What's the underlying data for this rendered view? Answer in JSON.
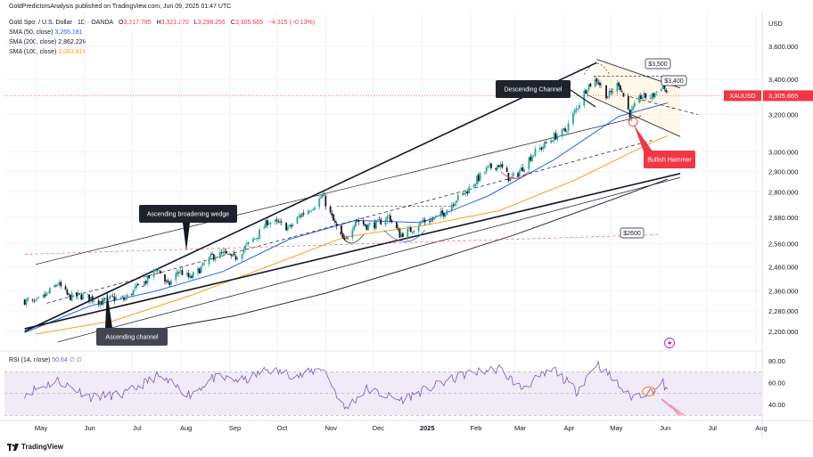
{
  "publisher_line": "GoldPredictorsAnalysis published on TradingView.com, Jun 09, 2025 01:47 UTC",
  "instrument": {
    "name": "Gold Spot / U.S. Dollar · 1D · OANDA",
    "open_label": "O",
    "open": "3,317.785",
    "high_label": "H",
    "high": "3,321.270",
    "low_label": "L",
    "low": "3,298.255",
    "close_label": "C",
    "close": "3,305.665",
    "change": "−4.315 (−0.13%)"
  },
  "indicators": [
    {
      "label": "SMA (50, close)",
      "value": "3,265.181",
      "color": "#2962ff"
    },
    {
      "label": "SMA (200, close)",
      "value": "2,862.226",
      "color": "#131722"
    },
    {
      "label": "SMA (100, close)",
      "value": "3,083.816",
      "color": "#f7a21b"
    }
  ],
  "rsi_header": {
    "label": "RSI (14, close)",
    "value": "50.64",
    "extra": "∅  ∅",
    "color": "#7e57c2"
  },
  "currency_label": "USD",
  "symbol_tag": {
    "name": "XAUUSD",
    "price": "3,305.665",
    "color": "#f23645"
  },
  "annotations": {
    "descending_channel": "Descending Channel",
    "ascending_broadening_wedge": "Ascending broadening wedge",
    "ascending_channel": "Ascending channel",
    "bullish_hammer": "Bullish Hammer",
    "level_3500": "$3,500",
    "level_3400": "$3,400",
    "level_2600": "$2600"
  },
  "branding": "TradingView",
  "chart_data": {
    "type": "candlestick",
    "y_scale": "log",
    "price_ticks": [
      3600,
      3400,
      3200,
      3000,
      2900,
      2800,
      2680,
      2560,
      2460,
      2360,
      2280,
      2200
    ],
    "price_tick_labels": [
      "3,600.000",
      "3,400.000",
      "3,200.000",
      "3,000.000",
      "2,900.000",
      "2,800.000",
      "2,680.000",
      "2,560.000",
      "2,460.000",
      "2,360.000",
      "2,280.000",
      "2,200.000"
    ],
    "rsi_ticks": [
      80,
      60,
      40
    ],
    "rsi_tick_labels": [
      "80.00",
      "60.00",
      "40.00"
    ],
    "rsi_band": [
      30,
      70
    ],
    "x_months": [
      "May",
      "Jun",
      "Jul",
      "Aug",
      "Sep",
      "Oct",
      "Nov",
      "Dec",
      "2025",
      "Feb",
      "Mar",
      "Apr",
      "May",
      "Jun",
      "Jul",
      "Aug"
    ],
    "price_path_weekly": [
      {
        "date": "2024-04-24",
        "close": 2320
      },
      {
        "date": "2024-05-01",
        "close": 2310
      },
      {
        "date": "2024-05-08",
        "close": 2345
      },
      {
        "date": "2024-05-15",
        "close": 2390
      },
      {
        "date": "2024-05-22",
        "close": 2335
      },
      {
        "date": "2024-05-29",
        "close": 2340
      },
      {
        "date": "2024-06-05",
        "close": 2330
      },
      {
        "date": "2024-06-12",
        "close": 2315
      },
      {
        "date": "2024-06-19",
        "close": 2330
      },
      {
        "date": "2024-06-26",
        "close": 2325
      },
      {
        "date": "2024-07-03",
        "close": 2365
      },
      {
        "date": "2024-07-10",
        "close": 2400
      },
      {
        "date": "2024-07-17",
        "close": 2455
      },
      {
        "date": "2024-07-24",
        "close": 2380
      },
      {
        "date": "2024-07-31",
        "close": 2445
      },
      {
        "date": "2024-08-07",
        "close": 2410
      },
      {
        "date": "2024-08-14",
        "close": 2455
      },
      {
        "date": "2024-08-21",
        "close": 2505
      },
      {
        "date": "2024-08-28",
        "close": 2515
      },
      {
        "date": "2024-09-04",
        "close": 2495
      },
      {
        "date": "2024-09-11",
        "close": 2545
      },
      {
        "date": "2024-09-18",
        "close": 2590
      },
      {
        "date": "2024-09-25",
        "close": 2660
      },
      {
        "date": "2024-10-02",
        "close": 2650
      },
      {
        "date": "2024-10-09",
        "close": 2630
      },
      {
        "date": "2024-10-16",
        "close": 2690
      },
      {
        "date": "2024-10-23",
        "close": 2725
      },
      {
        "date": "2024-10-30",
        "close": 2780
      },
      {
        "date": "2024-11-06",
        "close": 2660
      },
      {
        "date": "2024-11-13",
        "close": 2565
      },
      {
        "date": "2024-11-20",
        "close": 2670
      },
      {
        "date": "2024-11-27",
        "close": 2640
      },
      {
        "date": "2024-12-04",
        "close": 2650
      },
      {
        "date": "2024-12-11",
        "close": 2685
      },
      {
        "date": "2024-12-18",
        "close": 2600
      },
      {
        "date": "2024-12-25",
        "close": 2620
      },
      {
        "date": "2025-01-01",
        "close": 2660
      },
      {
        "date": "2025-01-08",
        "close": 2670
      },
      {
        "date": "2025-01-15",
        "close": 2700
      },
      {
        "date": "2025-01-22",
        "close": 2760
      },
      {
        "date": "2025-01-29",
        "close": 2800
      },
      {
        "date": "2025-02-05",
        "close": 2860
      },
      {
        "date": "2025-02-12",
        "close": 2915
      },
      {
        "date": "2025-02-19",
        "close": 2935
      },
      {
        "date": "2025-02-26",
        "close": 2860
      },
      {
        "date": "2025-03-05",
        "close": 2910
      },
      {
        "date": "2025-03-12",
        "close": 2985
      },
      {
        "date": "2025-03-19",
        "close": 3030
      },
      {
        "date": "2025-03-26",
        "close": 3080
      },
      {
        "date": "2025-04-02",
        "close": 3110
      },
      {
        "date": "2025-04-09",
        "close": 3230
      },
      {
        "date": "2025-04-16",
        "close": 3360
      },
      {
        "date": "2025-04-22",
        "close": 3400
      },
      {
        "date": "2025-04-29",
        "close": 3300
      },
      {
        "date": "2025-05-06",
        "close": 3380
      },
      {
        "date": "2025-05-13",
        "close": 3200
      },
      {
        "date": "2025-05-20",
        "close": 3300
      },
      {
        "date": "2025-05-27",
        "close": 3300
      },
      {
        "date": "2025-06-03",
        "close": 3370
      },
      {
        "date": "2025-06-06",
        "close": 3305
      }
    ],
    "sma50_path": [
      {
        "date": "2024-04-24",
        "value": 2195
      },
      {
        "date": "2024-06-05",
        "value": 2300
      },
      {
        "date": "2024-07-17",
        "value": 2360
      },
      {
        "date": "2024-08-28",
        "value": 2440
      },
      {
        "date": "2024-10-09",
        "value": 2580
      },
      {
        "date": "2024-11-20",
        "value": 2665
      },
      {
        "date": "2025-01-01",
        "value": 2655
      },
      {
        "date": "2025-02-12",
        "value": 2780
      },
      {
        "date": "2025-03-26",
        "value": 2960
      },
      {
        "date": "2025-05-06",
        "value": 3190
      },
      {
        "date": "2025-06-06",
        "value": 3265
      }
    ],
    "sma100_path": [
      {
        "date": "2024-05-01",
        "value": 2190
      },
      {
        "date": "2024-06-19",
        "value": 2240
      },
      {
        "date": "2024-08-07",
        "value": 2340
      },
      {
        "date": "2024-09-25",
        "value": 2460
      },
      {
        "date": "2024-11-13",
        "value": 2590
      },
      {
        "date": "2025-01-01",
        "value": 2640
      },
      {
        "date": "2025-02-19",
        "value": 2710
      },
      {
        "date": "2025-04-09",
        "value": 2860
      },
      {
        "date": "2025-05-27",
        "value": 3050
      },
      {
        "date": "2025-06-06",
        "value": 3084
      }
    ],
    "sma200_path": [
      {
        "date": "2024-07-10",
        "value": 2200
      },
      {
        "date": "2024-09-04",
        "value": 2260
      },
      {
        "date": "2024-11-01",
        "value": 2350
      },
      {
        "date": "2025-01-01",
        "value": 2470
      },
      {
        "date": "2025-03-01",
        "value": 2600
      },
      {
        "date": "2025-05-01",
        "value": 2760
      },
      {
        "date": "2025-06-06",
        "value": 2862
      }
    ],
    "trendlines": [
      {
        "name": "wedge-upper",
        "from": {
          "date": "2024-04-24",
          "price": 2200
        },
        "to": {
          "date": "2025-04-22",
          "price": 3500
        }
      },
      {
        "name": "wedge-lower",
        "from": {
          "date": "2024-04-24",
          "price": 2210
        },
        "to": {
          "date": "2025-06-14",
          "price": 2890
        }
      },
      {
        "name": "channel-upper",
        "from": {
          "date": "2024-05-01",
          "price": 2470
        },
        "to": {
          "date": "2025-05-20",
          "price": 3190
        }
      },
      {
        "name": "channel-lower",
        "from": {
          "date": "2024-05-15",
          "price": 2160
        },
        "to": {
          "date": "2025-06-14",
          "price": 2870
        }
      },
      {
        "name": "channel-mid",
        "from": {
          "date": "2024-05-08",
          "price": 2310
        },
        "to": {
          "date": "2025-05-27",
          "price": 3060
        }
      },
      {
        "name": "desc-upper",
        "from": {
          "date": "2025-04-22",
          "price": 3520
        },
        "to": {
          "date": "2025-06-14",
          "price": 3350
        }
      },
      {
        "name": "desc-lower",
        "from": {
          "date": "2025-04-16",
          "price": 3310
        },
        "to": {
          "date": "2025-06-14",
          "price": 3080
        }
      },
      {
        "name": "desc-mid",
        "from": {
          "date": "2025-05-13",
          "price": 3300
        },
        "to": {
          "date": "2025-06-25",
          "price": 3200
        }
      }
    ],
    "horizontal_levels": [
      {
        "name": "level-2600",
        "price": 2600,
        "from": "2024-04-24",
        "to": "2025-06-01",
        "style": "dashed-red"
      },
      {
        "name": "last-price",
        "price": 3305.665,
        "style": "dotted-red"
      }
    ],
    "rsi_path": [
      {
        "date": "2024-04-24",
        "value": 50
      },
      {
        "date": "2024-05-15",
        "value": 62
      },
      {
        "date": "2024-06-05",
        "value": 47
      },
      {
        "date": "2024-06-26",
        "value": 49
      },
      {
        "date": "2024-07-17",
        "value": 66
      },
      {
        "date": "2024-08-07",
        "value": 49
      },
      {
        "date": "2024-08-21",
        "value": 64
      },
      {
        "date": "2024-09-11",
        "value": 62
      },
      {
        "date": "2024-09-25",
        "value": 72
      },
      {
        "date": "2024-10-16",
        "value": 66
      },
      {
        "date": "2024-10-30",
        "value": 74
      },
      {
        "date": "2024-11-13",
        "value": 36
      },
      {
        "date": "2024-11-27",
        "value": 54
      },
      {
        "date": "2024-12-18",
        "value": 44
      },
      {
        "date": "2025-01-08",
        "value": 56
      },
      {
        "date": "2025-01-29",
        "value": 68
      },
      {
        "date": "2025-02-19",
        "value": 73
      },
      {
        "date": "2025-03-05",
        "value": 55
      },
      {
        "date": "2025-03-26",
        "value": 72
      },
      {
        "date": "2025-04-09",
        "value": 52
      },
      {
        "date": "2025-04-22",
        "value": 78
      },
      {
        "date": "2025-05-13",
        "value": 47
      },
      {
        "date": "2025-05-27",
        "value": 52
      },
      {
        "date": "2025-06-03",
        "value": 60
      },
      {
        "date": "2025-06-06",
        "value": 50.64
      }
    ]
  }
}
